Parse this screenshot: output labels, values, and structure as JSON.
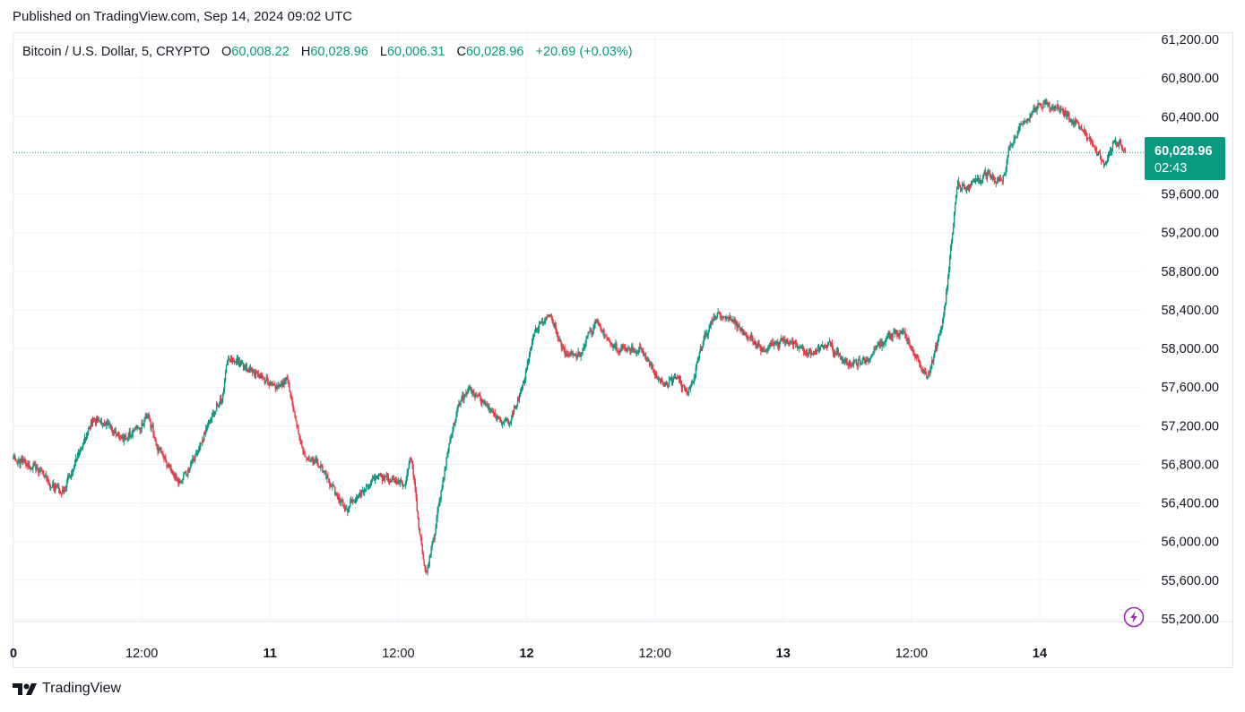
{
  "header": {
    "published": "Published on TradingView.com, Sep 14, 2024 09:02 UTC"
  },
  "legend": {
    "symbol": "Bitcoin / U.S. Dollar, 5, CRYPTO",
    "o_label": "O",
    "o_value": "60,008.22",
    "h_label": "H",
    "h_value": "60,028.96",
    "l_label": "L",
    "l_value": "60,006.31",
    "c_label": "C",
    "c_value": "60,028.96",
    "change": "+20.69 (+0.03%)"
  },
  "last_price": {
    "price": "60,028.96",
    "countdown": "02:43"
  },
  "footer": {
    "brand": "TradingView"
  },
  "icons": {
    "logo": "tradingview-logo-icon",
    "bolt": "lightning-bolt-icon"
  },
  "colors": {
    "up": "#089981",
    "down": "#f23645",
    "accent": "#089981",
    "bolt": "#9c27b0"
  },
  "chart_data": {
    "type": "candlestick",
    "title": "Bitcoin / U.S. Dollar, 5, CRYPTO",
    "interval": "5m",
    "ylim": [
      55000,
      61300
    ],
    "y_ticks": [
      "61,200.00",
      "60,800.00",
      "60,400.00",
      "60,000.00",
      "59,600.00",
      "59,200.00",
      "58,800.00",
      "58,400.00",
      "58,000.00",
      "57,600.00",
      "57,200.00",
      "56,800.00",
      "56,400.00",
      "56,000.00",
      "55,600.00",
      "55,200.00"
    ],
    "y_tick_values": [
      61200,
      60800,
      60400,
      60000,
      59600,
      59200,
      58800,
      58400,
      58000,
      57600,
      57200,
      56800,
      56400,
      56000,
      55600,
      55200
    ],
    "x_ticks": [
      "0",
      "12:00",
      "11",
      "12:00",
      "12",
      "12:00",
      "13",
      "12:00",
      "14"
    ],
    "x_tick_hours": [
      0,
      12,
      24,
      36,
      48,
      60,
      72,
      84,
      96
    ],
    "x_range_hours": [
      0,
      105
    ],
    "last_close": 60028.96,
    "grid": true,
    "price_path": [
      {
        "t": 0.0,
        "p": 56850
      },
      {
        "t": 1.5,
        "p": 56800
      },
      {
        "t": 4.5,
        "p": 56500
      },
      {
        "t": 7.5,
        "p": 57300
      },
      {
        "t": 10.5,
        "p": 57050
      },
      {
        "t": 12.5,
        "p": 57300
      },
      {
        "t": 13.5,
        "p": 56950
      },
      {
        "t": 15.5,
        "p": 56600
      },
      {
        "t": 17.0,
        "p": 56900
      },
      {
        "t": 18.5,
        "p": 57300
      },
      {
        "t": 19.5,
        "p": 57500
      },
      {
        "t": 20.0,
        "p": 57900
      },
      {
        "t": 21.0,
        "p": 57850
      },
      {
        "t": 24.5,
        "p": 57600
      },
      {
        "t": 25.5,
        "p": 57700
      },
      {
        "t": 26.5,
        "p": 57200
      },
      {
        "t": 27.0,
        "p": 56900
      },
      {
        "t": 28.5,
        "p": 56800
      },
      {
        "t": 31.0,
        "p": 56300
      },
      {
        "t": 34.0,
        "p": 56700
      },
      {
        "t": 36.5,
        "p": 56600
      },
      {
        "t": 37.2,
        "p": 56900
      },
      {
        "t": 37.8,
        "p": 56200
      },
      {
        "t": 38.5,
        "p": 55650
      },
      {
        "t": 39.5,
        "p": 56200
      },
      {
        "t": 40.5,
        "p": 56900
      },
      {
        "t": 41.5,
        "p": 57400
      },
      {
        "t": 42.5,
        "p": 57600
      },
      {
        "t": 43.5,
        "p": 57500
      },
      {
        "t": 45.0,
        "p": 57300
      },
      {
        "t": 46.5,
        "p": 57250
      },
      {
        "t": 48.0,
        "p": 57800
      },
      {
        "t": 48.7,
        "p": 58200
      },
      {
        "t": 50.0,
        "p": 58350
      },
      {
        "t": 51.5,
        "p": 57950
      },
      {
        "t": 53.0,
        "p": 57950
      },
      {
        "t": 54.5,
        "p": 58300
      },
      {
        "t": 56.0,
        "p": 58000
      },
      {
        "t": 58.5,
        "p": 58000
      },
      {
        "t": 61.0,
        "p": 57600
      },
      {
        "t": 62.0,
        "p": 57700
      },
      {
        "t": 63.0,
        "p": 57500
      },
      {
        "t": 64.5,
        "p": 58100
      },
      {
        "t": 66.0,
        "p": 58400
      },
      {
        "t": 68.0,
        "p": 58200
      },
      {
        "t": 70.0,
        "p": 58000
      },
      {
        "t": 72.5,
        "p": 58100
      },
      {
        "t": 74.0,
        "p": 57950
      },
      {
        "t": 76.0,
        "p": 58050
      },
      {
        "t": 78.0,
        "p": 57850
      },
      {
        "t": 80.0,
        "p": 57900
      },
      {
        "t": 81.5,
        "p": 58100
      },
      {
        "t": 83.0,
        "p": 58200
      },
      {
        "t": 84.5,
        "p": 57900
      },
      {
        "t": 85.5,
        "p": 57700
      },
      {
        "t": 86.5,
        "p": 58100
      },
      {
        "t": 87.0,
        "p": 58400
      },
      {
        "t": 87.6,
        "p": 59000
      },
      {
        "t": 88.2,
        "p": 59700
      },
      {
        "t": 89.5,
        "p": 59700
      },
      {
        "t": 91.0,
        "p": 59800
      },
      {
        "t": 92.5,
        "p": 59700
      },
      {
        "t": 93.0,
        "p": 60050
      },
      {
        "t": 94.0,
        "p": 60300
      },
      {
        "t": 95.5,
        "p": 60500
      },
      {
        "t": 96.5,
        "p": 60550
      },
      {
        "t": 98.0,
        "p": 60450
      },
      {
        "t": 99.5,
        "p": 60350
      },
      {
        "t": 101.0,
        "p": 60100
      },
      {
        "t": 102.0,
        "p": 59900
      },
      {
        "t": 103.0,
        "p": 60150
      },
      {
        "t": 104.0,
        "p": 60030
      }
    ]
  }
}
